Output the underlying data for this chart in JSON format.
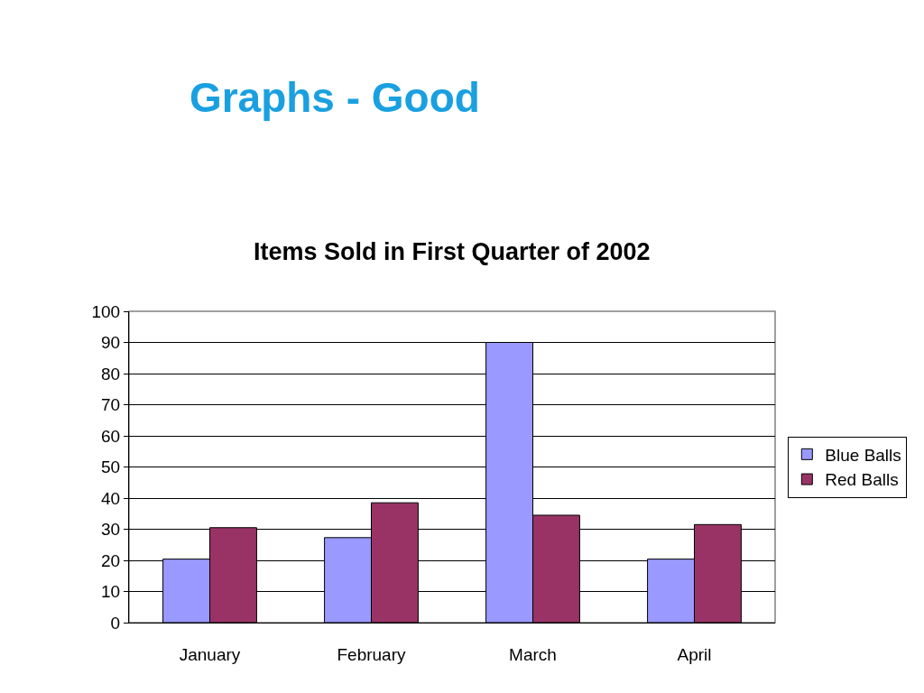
{
  "chart_data": {
    "type": "bar",
    "title": "Graphs - Good",
    "subtitle": "Items Sold in First Quarter of 2002",
    "categories": [
      "January",
      "February",
      "March",
      "April"
    ],
    "series": [
      {
        "name": "Blue Balls",
        "color": "#9999ff",
        "values": [
          20.4,
          27.3,
          90,
          20.4
        ]
      },
      {
        "name": "Red Balls",
        "color": "#993366",
        "values": [
          30.5,
          38.5,
          34.5,
          31.5
        ]
      }
    ],
    "ylim": [
      0,
      100
    ],
    "yticks": [
      0,
      10,
      20,
      30,
      40,
      50,
      60,
      70,
      80,
      90,
      100
    ],
    "grid": "y",
    "legend": "right"
  }
}
